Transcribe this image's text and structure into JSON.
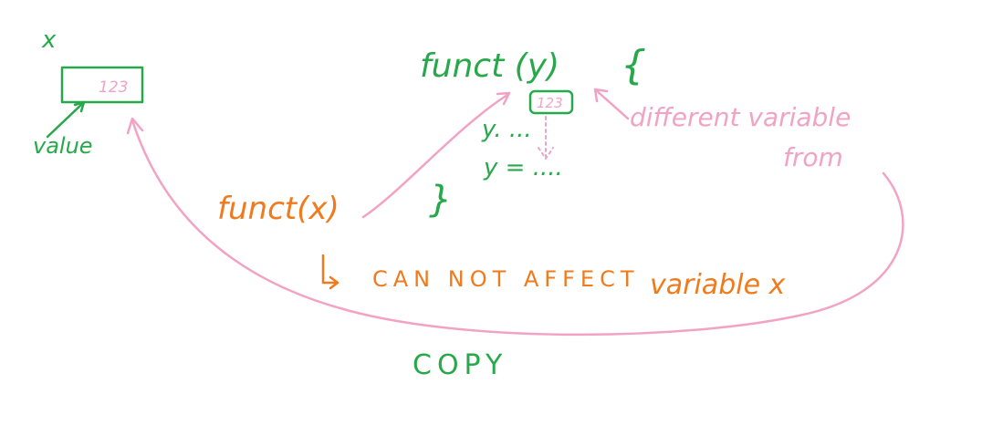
{
  "colors": {
    "green": "#27a84a",
    "orange": "#f07a1c",
    "pink": "#f2a3c3",
    "background": "#ffffff"
  },
  "labels": {
    "var_name_x": "x",
    "value_in_box": "123",
    "value_label": "value",
    "funct_def": "funct (y)",
    "open_brace": "{",
    "close_brace": "}",
    "copied_value": "123",
    "body_line_1": "y. ...",
    "body_line_2": "y = ....",
    "different_variable": "different variable",
    "from": "from",
    "funct_call": "funct(x)",
    "cannot_affect_prefix": "CAN NOT AFFECT",
    "cannot_affect_suffix": "variable x",
    "copy": "COPY"
  }
}
